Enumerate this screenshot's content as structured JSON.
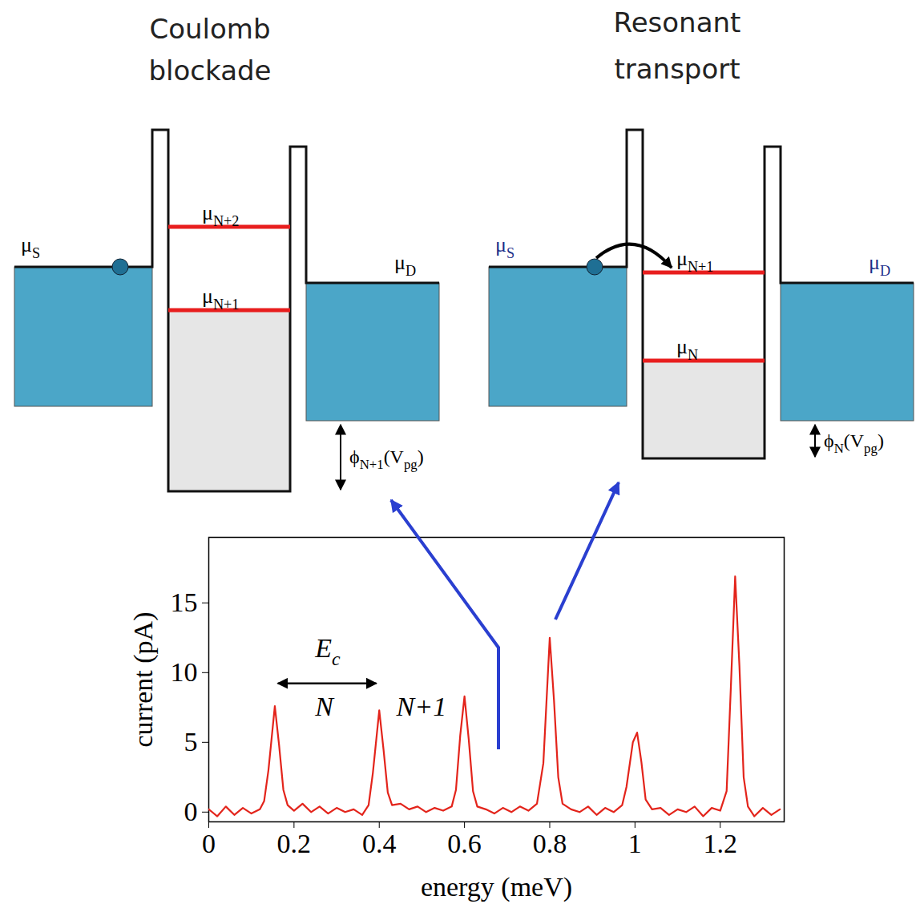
{
  "diagrams": [
    {
      "title": "Coulomb blockade",
      "source": [
        {
          "t": "μ"
        },
        {
          "t": "S",
          "sub": true
        }
      ],
      "drain": [
        {
          "t": "μ"
        },
        {
          "t": "D",
          "sub": true
        }
      ],
      "levels": [
        [
          {
            "t": "μ"
          },
          {
            "t": "N+2",
            "sub": true
          }
        ],
        [
          {
            "t": "μ"
          },
          {
            "t": "N+1",
            "sub": true
          }
        ]
      ],
      "offset": [
        {
          "t": "ϕ"
        },
        {
          "t": "N+1",
          "sub": true
        },
        {
          "t": "(V"
        },
        {
          "t": "pg",
          "sub": true
        },
        {
          "t": ")"
        }
      ]
    },
    {
      "title": "Resonant transport",
      "source": [
        {
          "t": "μ"
        },
        {
          "t": "S",
          "sub": true
        }
      ],
      "drain": [
        {
          "t": "μ"
        },
        {
          "t": "D",
          "sub": true
        }
      ],
      "levels": [
        [
          {
            "t": "μ"
          },
          {
            "t": "N+1",
            "sub": true
          }
        ],
        [
          {
            "t": "μ"
          },
          {
            "t": "N",
            "sub": true
          }
        ]
      ],
      "offset": [
        {
          "t": "ϕ"
        },
        {
          "t": "N",
          "sub": true
        },
        {
          "t": "(V"
        },
        {
          "t": "pg",
          "sub": true
        },
        {
          "t": ")"
        }
      ]
    }
  ],
  "chart_data": {
    "type": "line",
    "xlabel": "energy (meV)",
    "ylabel": "current (pA)",
    "color": "#e3241b",
    "xlim": [
      0,
      1.35
    ],
    "ylim": [
      -0.7,
      19.7
    ],
    "xticks": [
      0,
      0.2,
      0.4,
      0.6,
      0.8,
      1.0,
      1.2
    ],
    "yticks": [
      0,
      5,
      10,
      15
    ],
    "x": [
      0,
      0.02,
      0.04,
      0.06,
      0.08,
      0.1,
      0.12,
      0.13,
      0.14,
      0.155,
      0.165,
      0.175,
      0.185,
      0.2,
      0.22,
      0.24,
      0.26,
      0.28,
      0.3,
      0.32,
      0.34,
      0.36,
      0.375,
      0.385,
      0.4,
      0.41,
      0.42,
      0.43,
      0.45,
      0.47,
      0.49,
      0.51,
      0.53,
      0.55,
      0.57,
      0.58,
      0.59,
      0.6,
      0.61,
      0.62,
      0.63,
      0.65,
      0.67,
      0.69,
      0.71,
      0.73,
      0.75,
      0.77,
      0.785,
      0.8,
      0.81,
      0.82,
      0.83,
      0.85,
      0.87,
      0.89,
      0.91,
      0.93,
      0.95,
      0.97,
      0.98,
      0.995,
      1.005,
      1.015,
      1.025,
      1.04,
      1.06,
      1.08,
      1.1,
      1.12,
      1.14,
      1.16,
      1.18,
      1.2,
      1.215,
      1.225,
      1.235,
      1.245,
      1.255,
      1.265,
      1.28,
      1.3,
      1.32,
      1.34
    ],
    "values": [
      0.2,
      -0.3,
      0.4,
      -0.2,
      0.3,
      -0.1,
      0.2,
      0.8,
      3.0,
      7.6,
      4.8,
      1.6,
      0.5,
      0.1,
      0.6,
      0.0,
      0.4,
      -0.1,
      0.3,
      0.0,
      0.2,
      -0.2,
      0.5,
      2.8,
      7.3,
      4.5,
      1.4,
      0.5,
      0.6,
      0.2,
      0.4,
      0.0,
      0.3,
      0.1,
      0.4,
      1.6,
      5.5,
      8.3,
      5.2,
      1.5,
      0.4,
      0.2,
      -0.1,
      0.3,
      0.0,
      0.4,
      0.1,
      0.6,
      3.5,
      12.5,
      8.0,
      2.5,
      0.6,
      0.2,
      0.0,
      0.4,
      -0.2,
      0.3,
      0.0,
      0.5,
      1.8,
      5.0,
      5.7,
      3.6,
      0.9,
      0.2,
      0.3,
      -0.2,
      0.2,
      0.0,
      0.4,
      -0.3,
      0.3,
      0.1,
      1.5,
      9.0,
      16.9,
      10.5,
      2.5,
      0.4,
      -0.3,
      0.3,
      -0.2,
      0.2
    ],
    "annotations": [
      {
        "text": [
          {
            "t": "E"
          },
          {
            "t": "c",
            "sub": true
          }
        ],
        "x": 0.28,
        "y": 11.1
      },
      {
        "text": [
          {
            "t": "N"
          }
        ],
        "x": 0.272,
        "y": 6.9
      },
      {
        "text": [
          {
            "t": "N+1"
          }
        ],
        "x": 0.5,
        "y": 6.9
      }
    ],
    "arrows": [
      {
        "x_from": 0.163,
        "x_to": 0.394,
        "y": 9.2
      }
    ]
  }
}
